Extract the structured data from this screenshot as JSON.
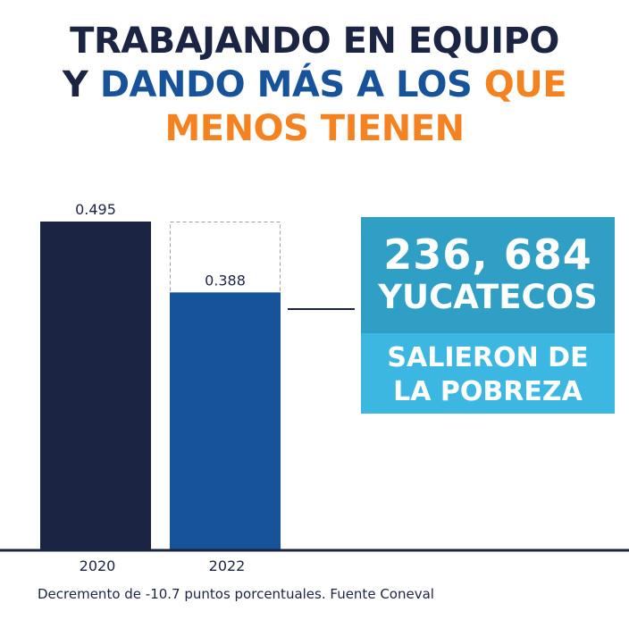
{
  "title": {
    "line1": [
      {
        "text": "TRABAJANDO EN EQUIPO",
        "color": "#1c2444"
      }
    ],
    "line2": [
      {
        "text": "Y ",
        "color": "#1c2444"
      },
      {
        "text": "DANDO MÁS A LOS ",
        "color": "#17539a"
      },
      {
        "text": "QUE",
        "color": "#f58220"
      }
    ],
    "line3": [
      {
        "text": "MENOS TIENEN",
        "color": "#f58220"
      }
    ]
  },
  "chart_data": {
    "type": "bar",
    "categories": [
      "2020",
      "2022"
    ],
    "values": [
      0.495,
      0.388
    ],
    "value_labels": [
      "0.495",
      "0.388"
    ],
    "colors": [
      "#1c2444",
      "#17539a"
    ],
    "previous_value_outline": 0.495,
    "grid": false
  },
  "callout": {
    "number": "236, 684",
    "word": "YUCATECOS",
    "line1": "SALIERON DE",
    "line2": "LA POBREZA",
    "color_top": "#2f9fc5",
    "color_bottom": "#3bb7e2"
  },
  "footnote": "Decremento de -10.7 puntos porcentuales. Fuente Coneval"
}
